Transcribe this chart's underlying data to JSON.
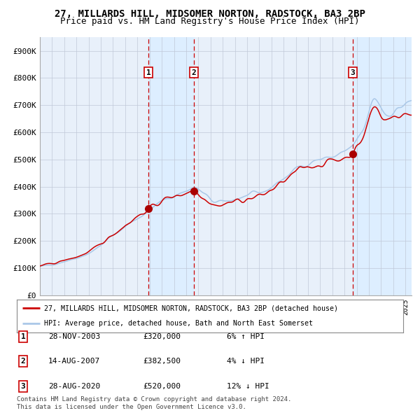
{
  "title": "27, MILLARDS HILL, MIDSOMER NORTON, RADSTOCK, BA3 2BP",
  "subtitle": "Price paid vs. HM Land Registry's House Price Index (HPI)",
  "title_fontsize": 10,
  "subtitle_fontsize": 9,
  "x_start_year": 1995,
  "x_end_year": 2025,
  "y_min": 0,
  "y_max": 900000,
  "y_ticks": [
    0,
    100000,
    200000,
    300000,
    400000,
    500000,
    600000,
    700000,
    800000,
    900000
  ],
  "y_tick_labels": [
    "£0",
    "£100K",
    "£200K",
    "£300K",
    "£400K",
    "£500K",
    "£600K",
    "£700K",
    "£800K",
    "£900K"
  ],
  "hpi_line_color": "#aac8e8",
  "price_line_color": "#cc0000",
  "marker_color": "#aa0000",
  "dashed_line_color": "#cc0000",
  "shade_color": "#ddeeff",
  "plot_bg_color": "#e8f0fa",
  "legend_box_color": "#ffffff",
  "grid_color": "#c0c8d8",
  "sale_year_nums": [
    2003.9167,
    2007.625,
    2020.6667
  ],
  "sale_prices": [
    320000,
    382500,
    520000
  ],
  "sale_labels": [
    "1",
    "2",
    "3"
  ],
  "legend_line1": "27, MILLARDS HILL, MIDSOMER NORTON, RADSTOCK, BA3 2BP (detached house)",
  "legend_line2": "HPI: Average price, detached house, Bath and North East Somerset",
  "table_entries": [
    {
      "label": "1",
      "date": "28-NOV-2003",
      "price": "£320,000",
      "hpi": "6% ↑ HPI"
    },
    {
      "label": "2",
      "date": "14-AUG-2007",
      "price": "£382,500",
      "hpi": "4% ↓ HPI"
    },
    {
      "label": "3",
      "date": "28-AUG-2020",
      "price": "£520,000",
      "hpi": "12% ↓ HPI"
    }
  ],
  "footnote1": "Contains HM Land Registry data © Crown copyright and database right 2024.",
  "footnote2": "This data is licensed under the Open Government Licence v3.0."
}
